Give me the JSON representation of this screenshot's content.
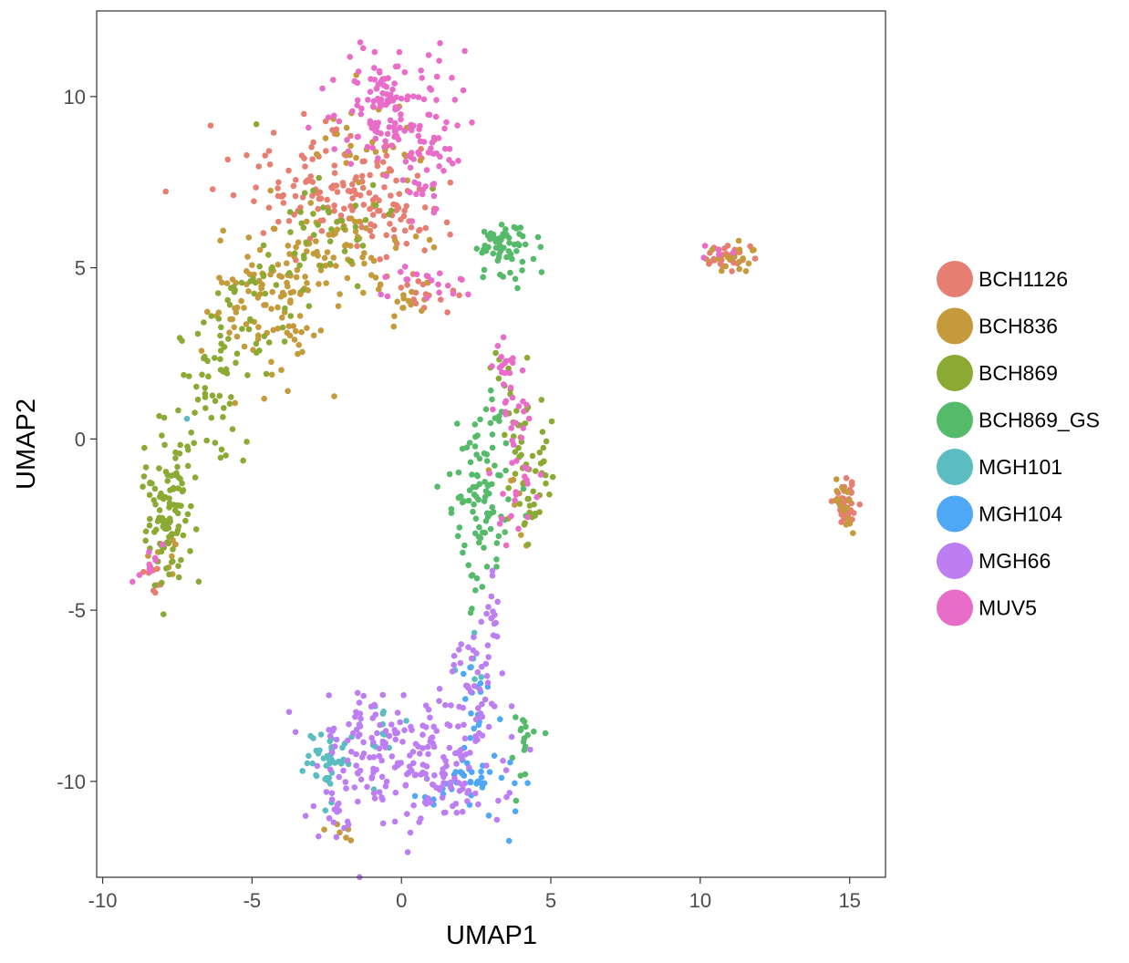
{
  "chart_data": {
    "type": "scatter",
    "title": "",
    "xlabel": "UMAP1",
    "ylabel": "UMAP2",
    "xlim": [
      -10.2,
      16.2
    ],
    "ylim": [
      -12.8,
      12.5
    ],
    "xticks": [
      -10,
      -5,
      0,
      5,
      10,
      15
    ],
    "yticks": [
      -10,
      -5,
      0,
      5,
      10
    ],
    "xtick_labels": [
      "-10",
      "-5",
      "0",
      "5",
      "10",
      "15"
    ],
    "ytick_labels": [
      "-10",
      "-5",
      "0",
      "5",
      "10"
    ],
    "grid": false,
    "legend_position": "right",
    "series": [
      {
        "name": "BCH1126",
        "color": "#E67F72",
        "clusters": [
          {
            "x": -2.0,
            "y": 7.3,
            "sx": 1.7,
            "sy": 0.8,
            "n": 140
          },
          {
            "x": -0.3,
            "y": 6.3,
            "sx": 0.8,
            "sy": 0.5,
            "n": 30
          },
          {
            "x": 0.7,
            "y": 4.3,
            "sx": 0.6,
            "sy": 0.3,
            "n": 15
          },
          {
            "x": 10.9,
            "y": 5.3,
            "sx": 0.4,
            "sy": 0.17,
            "n": 25
          },
          {
            "x": 14.9,
            "y": -2.0,
            "sx": 0.2,
            "sy": 0.4,
            "n": 45
          },
          {
            "x": -8.3,
            "y": -3.9,
            "sx": 0.3,
            "sy": 0.3,
            "n": 10
          }
        ]
      },
      {
        "name": "BCH836",
        "color": "#C49A3A",
        "clusters": [
          {
            "x": -4.2,
            "y": 4.0,
            "sx": 1.0,
            "sy": 1.2,
            "n": 110
          },
          {
            "x": -1.8,
            "y": 5.3,
            "sx": 1.2,
            "sy": 0.6,
            "n": 60
          },
          {
            "x": -1.0,
            "y": 8.5,
            "sx": 1.0,
            "sy": 1.0,
            "n": 30
          },
          {
            "x": 0.4,
            "y": 4.0,
            "sx": 0.4,
            "sy": 0.3,
            "n": 12
          },
          {
            "x": 10.9,
            "y": 5.3,
            "sx": 0.4,
            "sy": 0.17,
            "n": 20
          },
          {
            "x": 14.9,
            "y": -2.0,
            "sx": 0.2,
            "sy": 0.4,
            "n": 15
          },
          {
            "x": -8.0,
            "y": -3.5,
            "sx": 0.4,
            "sy": 0.4,
            "n": 8
          },
          {
            "x": -2.2,
            "y": -11.5,
            "sx": 0.3,
            "sy": 0.2,
            "n": 6
          },
          {
            "x": 4.0,
            "y": -1.5,
            "sx": 0.5,
            "sy": 1.0,
            "n": 10
          }
        ]
      },
      {
        "name": "BCH869",
        "color": "#8BAA34",
        "clusters": [
          {
            "x": -7.8,
            "y": -2.2,
            "sx": 0.5,
            "sy": 1.1,
            "n": 110
          },
          {
            "x": -6.5,
            "y": 1.5,
            "sx": 0.6,
            "sy": 1.5,
            "n": 50
          },
          {
            "x": -4.8,
            "y": 4.0,
            "sx": 0.8,
            "sy": 0.9,
            "n": 40
          },
          {
            "x": -2.5,
            "y": 6.5,
            "sx": 1.2,
            "sy": 1.0,
            "n": 40
          },
          {
            "x": 4.3,
            "y": -0.8,
            "sx": 0.4,
            "sy": 1.1,
            "n": 55
          },
          {
            "x": 3.6,
            "y": 1.8,
            "sx": 0.3,
            "sy": 0.5,
            "n": 10
          }
        ]
      },
      {
        "name": "BCH869_GS",
        "color": "#56BA6B",
        "clusters": [
          {
            "x": 2.7,
            "y": -1.8,
            "sx": 0.5,
            "sy": 1.2,
            "n": 90
          },
          {
            "x": 3.4,
            "y": 5.5,
            "sx": 0.6,
            "sy": 0.35,
            "n": 60
          },
          {
            "x": 4.2,
            "y": -8.5,
            "sx": 0.25,
            "sy": 0.3,
            "n": 12
          },
          {
            "x": 3.9,
            "y": -9.6,
            "sx": 0.15,
            "sy": 0.4,
            "n": 5
          },
          {
            "x": 3.2,
            "y": 0.3,
            "sx": 0.3,
            "sy": 0.6,
            "n": 10
          }
        ]
      },
      {
        "name": "MGH101",
        "color": "#5BBDC2",
        "clusters": [
          {
            "x": -2.5,
            "y": -9.4,
            "sx": 0.4,
            "sy": 0.5,
            "n": 40
          },
          {
            "x": -0.5,
            "y": -8.3,
            "sx": 0.8,
            "sy": 0.8,
            "n": 12
          },
          {
            "x": 2.3,
            "y": -6.2,
            "sx": 0.3,
            "sy": 0.5,
            "n": 6
          },
          {
            "x": -7.0,
            "y": 0.5,
            "sx": 0.1,
            "sy": 0.1,
            "n": 1
          }
        ]
      },
      {
        "name": "MGH104",
        "color": "#4EA8F5",
        "clusters": [
          {
            "x": 2.5,
            "y": -9.8,
            "sx": 0.6,
            "sy": 0.6,
            "n": 40
          },
          {
            "x": 2.5,
            "y": -7.5,
            "sx": 0.25,
            "sy": 0.5,
            "n": 12
          },
          {
            "x": 1.3,
            "y": -10.5,
            "sx": 0.4,
            "sy": 0.2,
            "n": 6
          }
        ]
      },
      {
        "name": "MGH66",
        "color": "#BC7EF2",
        "clusters": [
          {
            "x": -0.5,
            "y": -9.0,
            "sx": 1.3,
            "sy": 0.9,
            "n": 130
          },
          {
            "x": 1.6,
            "y": -9.8,
            "sx": 1.0,
            "sy": 0.8,
            "n": 80
          },
          {
            "x": 2.5,
            "y": -7.0,
            "sx": 0.4,
            "sy": 0.8,
            "n": 40
          },
          {
            "x": 3.0,
            "y": -5.0,
            "sx": 0.1,
            "sy": 0.6,
            "n": 15
          },
          {
            "x": -2.1,
            "y": -11.0,
            "sx": 0.3,
            "sy": 0.6,
            "n": 20
          }
        ]
      },
      {
        "name": "MUV5",
        "color": "#E86CC8",
        "clusters": [
          {
            "x": -0.3,
            "y": 9.6,
            "sx": 1.0,
            "sy": 0.9,
            "n": 140
          },
          {
            "x": 0.9,
            "y": 7.6,
            "sx": 0.6,
            "sy": 0.7,
            "n": 30
          },
          {
            "x": 0.8,
            "y": 4.6,
            "sx": 0.7,
            "sy": 0.3,
            "n": 20
          },
          {
            "x": 3.5,
            "y": 1.6,
            "sx": 0.3,
            "sy": 0.8,
            "n": 30
          },
          {
            "x": 3.9,
            "y": -1.2,
            "sx": 0.4,
            "sy": 1.0,
            "n": 25
          },
          {
            "x": -8.2,
            "y": -3.8,
            "sx": 0.3,
            "sy": 0.3,
            "n": 10
          },
          {
            "x": 10.5,
            "y": 5.5,
            "sx": 0.3,
            "sy": 0.1,
            "n": 5
          }
        ]
      }
    ]
  }
}
